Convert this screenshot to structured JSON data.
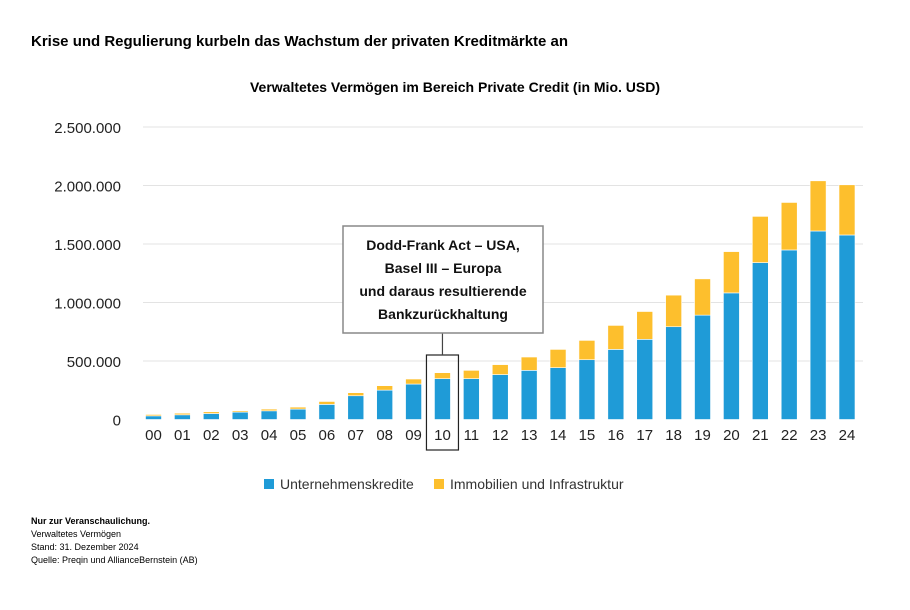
{
  "title": "Krise und Regulierung kurbeln das Wachstum der privaten Kreditmärkte an",
  "notes": [
    "Nur zur Veranschaulichung.",
    "Verwaltetes Vermögen",
    "Stand: 31. Dezember 2024",
    "Quelle: Preqin und AllianceBernstein (AB)"
  ],
  "chart_data": {
    "type": "bar",
    "stacked": true,
    "title": "Verwaltetes Vermögen im Bereich Private Credit (in Mio. USD)",
    "xlabel": "",
    "ylabel": "",
    "ylim": [
      0,
      2500000
    ],
    "yticks": [
      0,
      500000,
      1000000,
      1500000,
      2000000,
      2500000
    ],
    "ytick_labels": [
      "0",
      "500.000",
      "1.000.000",
      "1.500.000",
      "2.000.000",
      "2.500.000"
    ],
    "grid": true,
    "legend": "bottom",
    "categories": [
      "00",
      "01",
      "02",
      "03",
      "04",
      "05",
      "06",
      "07",
      "08",
      "09",
      "10",
      "11",
      "12",
      "13",
      "14",
      "15",
      "16",
      "17",
      "18",
      "19",
      "20",
      "21",
      "22",
      "23",
      "24"
    ],
    "series": [
      {
        "name": "Unternehmenskredite",
        "color": "#1f9bd7",
        "values": [
          31000,
          40000,
          51000,
          63000,
          74000,
          89000,
          129000,
          203000,
          251000,
          303000,
          349000,
          349000,
          384000,
          420000,
          443000,
          511000,
          599000,
          685000,
          793000,
          892000,
          1082000,
          1341000,
          1449000,
          1611000,
          1577000
        ]
      },
      {
        "name": "Immobilien und Infrastruktur",
        "color": "#fdbf2d",
        "values": [
          12000,
          14000,
          15000,
          11000,
          15000,
          17000,
          25000,
          26000,
          38000,
          43000,
          51000,
          71000,
          85000,
          114000,
          156000,
          165000,
          205000,
          238000,
          270000,
          310000,
          353000,
          395000,
          406000,
          429000,
          429000
        ]
      }
    ],
    "annotation": {
      "text": [
        "Dodd-Frank Act – USA,",
        "Basel III – Europa",
        "und daraus resultierende",
        "Bankzurückhaltung"
      ],
      "category": "10"
    }
  }
}
